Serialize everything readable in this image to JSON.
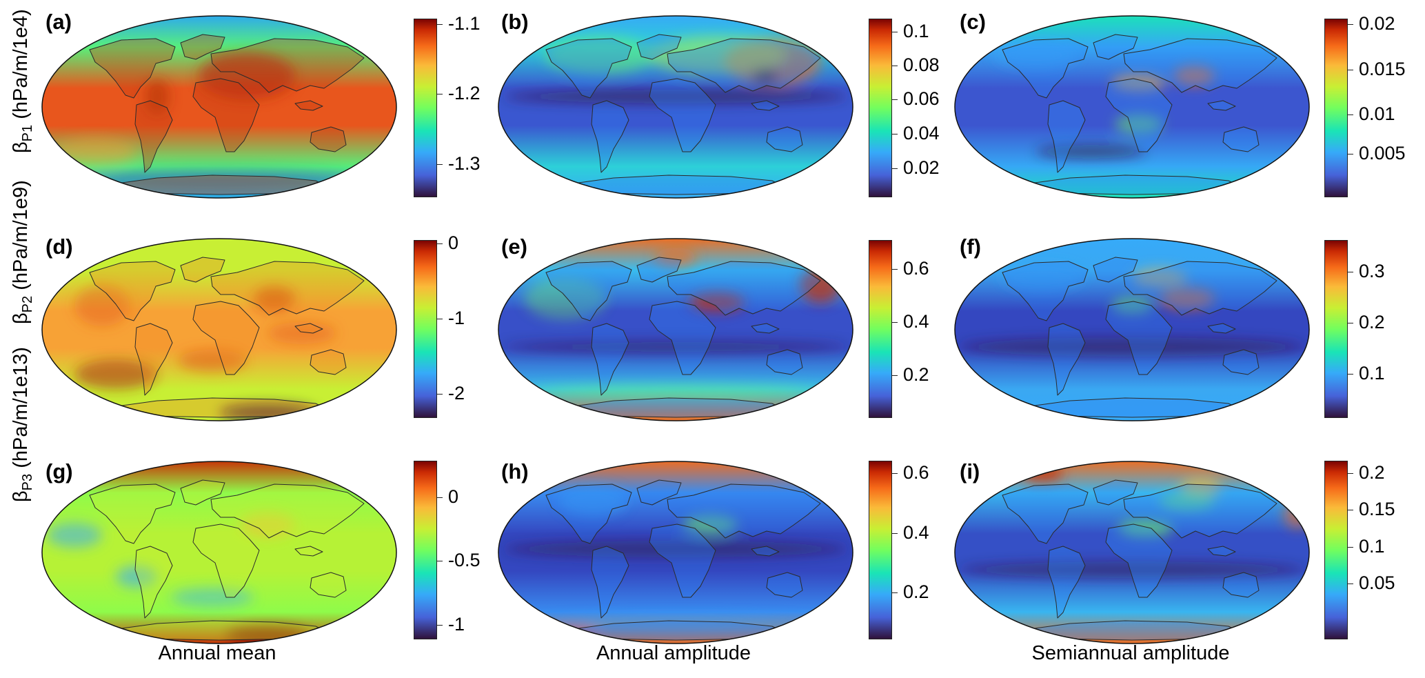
{
  "figure": {
    "column_titles": [
      "Annual mean",
      "Annual amplitude",
      "Semiannual amplitude"
    ],
    "rows": [
      {
        "label_beta": "β",
        "label_sub": "P1",
        "label_unit": " (hPa/m/1e4)",
        "panels": [
          {
            "label": "(a)",
            "colorbar_ticks": [
              "-1.1",
              "-1.2",
              "-1.3"
            ]
          },
          {
            "label": "(b)",
            "colorbar_ticks": [
              "0.1",
              "0.08",
              "0.06",
              "0.04",
              "0.02"
            ]
          },
          {
            "label": "(c)",
            "colorbar_ticks": [
              "0.02",
              "0.015",
              "0.01",
              "0.005"
            ]
          }
        ]
      },
      {
        "label_beta": "β",
        "label_sub": "P2",
        "label_unit": " (hPa/m/1e9)",
        "panels": [
          {
            "label": "(d)",
            "colorbar_ticks": [
              "0",
              "-1",
              "-2"
            ]
          },
          {
            "label": "(e)",
            "colorbar_ticks": [
              "0.6",
              "0.4",
              "0.2"
            ]
          },
          {
            "label": "(f)",
            "colorbar_ticks": [
              "0.3",
              "0.2",
              "0.1"
            ]
          }
        ]
      },
      {
        "label_beta": "β",
        "label_sub": "P3",
        "label_unit": " (hPa/m/1e13)",
        "panels": [
          {
            "label": "(g)",
            "colorbar_ticks": [
              "0",
              "-0.5",
              "-1"
            ]
          },
          {
            "label": "(h)",
            "colorbar_ticks": [
              "0.6",
              "0.4",
              "0.2"
            ]
          },
          {
            "label": "(i)",
            "colorbar_ticks": [
              "0.2",
              "0.15",
              "0.1",
              "0.05"
            ]
          }
        ]
      }
    ],
    "colormap": [
      "#30123b",
      "#4662d8",
      "#36aaf9",
      "#1ae4b6",
      "#72fe5e",
      "#c8ef34",
      "#faba39",
      "#f66b19",
      "#ca2a04",
      "#7a0403"
    ],
    "map_styles": {
      "a": {
        "ocean_base": "#e8561d",
        "high_lat": "#58f07a",
        "pole": "#2ba6f2",
        "land": "#c23a10"
      },
      "b": {
        "ocean_base": "#3a57d0",
        "high_lat": "#2dd0d8",
        "pole": "#37a8f7",
        "land": "#2f7df0"
      },
      "c": {
        "ocean_base": "#3c56cf",
        "high_lat": "#36a8f5",
        "pole": "#1ae4b6",
        "land": "#2f8af5"
      },
      "d": {
        "ocean_base": "#f7a236",
        "high_lat": "#c8ef34",
        "pole": "#c8ef34",
        "land": "#f08a26"
      },
      "e": {
        "ocean_base": "#3850c8",
        "high_lat": "#39bdf0",
        "pole": "#f66b19",
        "land": "#2f7df0"
      },
      "f": {
        "ocean_base": "#3447c0",
        "high_lat": "#3aa8f2",
        "pole": "#36aaf9",
        "land": "#2f7df0"
      },
      "g": {
        "ocean_base": "#b6f236",
        "high_lat": "#8ffb4a",
        "pole": "#ca2a04",
        "land": "#c8ef34"
      },
      "h": {
        "ocean_base": "#3447c0",
        "high_lat": "#3a8cf0",
        "pole": "#f66b19",
        "land": "#2f7df0"
      },
      "i": {
        "ocean_base": "#3550c6",
        "high_lat": "#39b5f0",
        "pole": "#f66b19",
        "land": "#2f8af5"
      }
    }
  }
}
